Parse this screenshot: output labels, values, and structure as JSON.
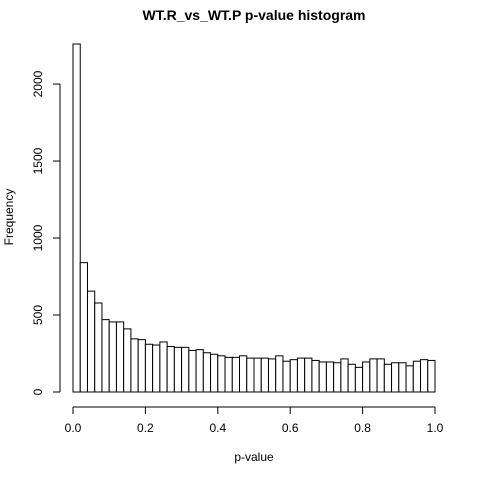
{
  "chart_data": {
    "type": "bar",
    "title": "WT.R_vs_WT.P p-value histogram",
    "xlabel": "p-value",
    "ylabel": "Frequency",
    "xlim": [
      0,
      1
    ],
    "ylim": [
      0,
      2260
    ],
    "bin_width": 0.02,
    "x_ticks": [
      0,
      0.2,
      0.4,
      0.6,
      0.8,
      1
    ],
    "x_tick_labels": [
      "0.0",
      "0.2",
      "0.4",
      "0.6",
      "0.8",
      "1.0"
    ],
    "y_ticks": [
      0,
      500,
      1000,
      1500,
      2000
    ],
    "y_tick_labels": [
      "0",
      "500",
      "1000",
      "1500",
      "2000"
    ],
    "bin_starts": [
      0.0,
      0.02,
      0.04,
      0.06,
      0.08,
      0.1,
      0.12,
      0.14,
      0.16,
      0.18,
      0.2,
      0.22,
      0.24,
      0.26,
      0.28,
      0.3,
      0.32,
      0.34,
      0.36,
      0.38,
      0.4,
      0.42,
      0.44,
      0.46,
      0.48,
      0.5,
      0.52,
      0.54,
      0.56,
      0.58,
      0.6,
      0.62,
      0.64,
      0.66,
      0.68,
      0.7,
      0.72,
      0.74,
      0.76,
      0.78,
      0.8,
      0.82,
      0.84,
      0.86,
      0.88,
      0.9,
      0.92,
      0.94,
      0.96,
      0.98
    ],
    "values": [
      2260,
      840,
      655,
      578,
      470,
      455,
      455,
      410,
      345,
      340,
      310,
      305,
      325,
      295,
      290,
      290,
      270,
      275,
      255,
      245,
      235,
      225,
      225,
      235,
      220,
      220,
      220,
      215,
      235,
      200,
      210,
      220,
      220,
      205,
      195,
      195,
      190,
      215,
      180,
      160,
      195,
      215,
      215,
      180,
      190,
      190,
      170,
      200,
      210,
      205
    ],
    "grid": false,
    "legend": "none"
  }
}
